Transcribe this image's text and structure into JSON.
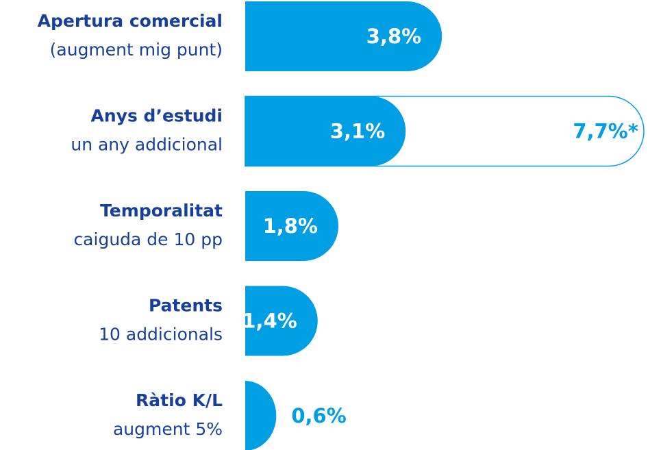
{
  "chart_data": {
    "type": "bar",
    "categories": [
      "Apertura comercial",
      "Anys d’estudi",
      "Temporalitat",
      "Patents",
      "Ràtio K/L"
    ],
    "subtitles": [
      "(augment mig punt)",
      "un any addicional",
      "caiguda de 10 pp",
      "10 addicionals",
      "augment 5%"
    ],
    "series": [
      {
        "color": "#009fe3",
        "values": [
          3.8,
          3.1,
          1.8,
          1.4,
          0.6
        ],
        "value_labels": [
          "3,8%",
          "3,1%",
          "1,8%",
          "1,4%",
          "0,6%"
        ]
      },
      {
        "color": "#009fe3",
        "outline": true,
        "values": [
          null,
          7.7,
          null,
          null,
          null
        ],
        "value_labels": [
          null,
          "7,7%*",
          null,
          null,
          null
        ]
      }
    ]
  }
}
